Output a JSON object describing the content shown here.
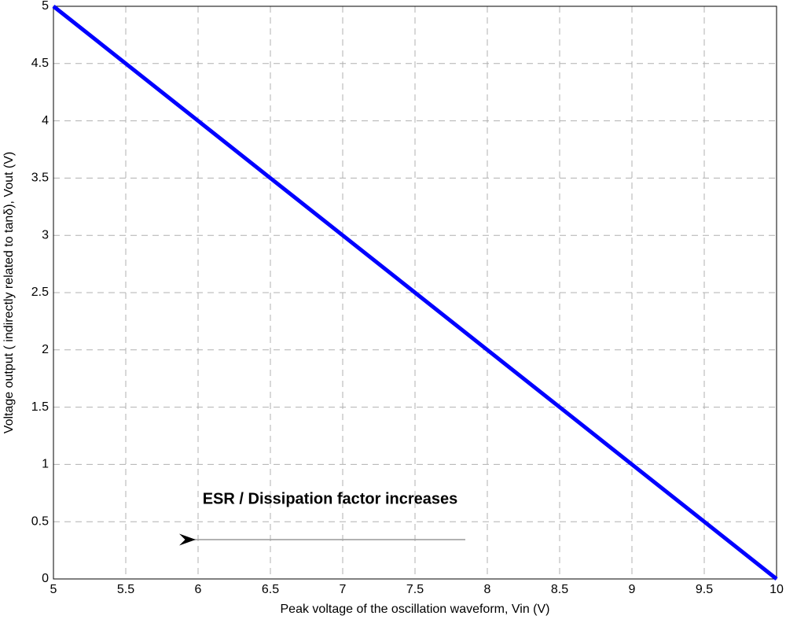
{
  "chart_data": {
    "type": "line",
    "x_label": "Peak voltage of the oscillation waveform, Vin (V)",
    "y_label": "Voltage output ( indirectly related to tanδ), Vout (V)",
    "annotation": "ESR / Dissipation factor increases",
    "x": [
      5,
      5.5,
      6,
      6.5,
      7,
      7.5,
      8,
      8.5,
      9,
      9.5,
      10
    ],
    "series": [
      {
        "color": "#0000ff",
        "values": [
          5,
          4.5,
          4,
          3.5,
          3,
          2.5,
          2,
          1.5,
          1,
          0.5,
          0
        ]
      }
    ],
    "xlim": [
      5,
      10
    ],
    "xticks": [
      5,
      5.5,
      6,
      6.5,
      7,
      7.5,
      8,
      8.5,
      9,
      9.5,
      10
    ],
    "ylim": [
      0,
      5
    ],
    "yticks": [
      0,
      0.5,
      1,
      1.5,
      2,
      2.5,
      3,
      3.5,
      4,
      4.5,
      5
    ],
    "grid": true
  }
}
